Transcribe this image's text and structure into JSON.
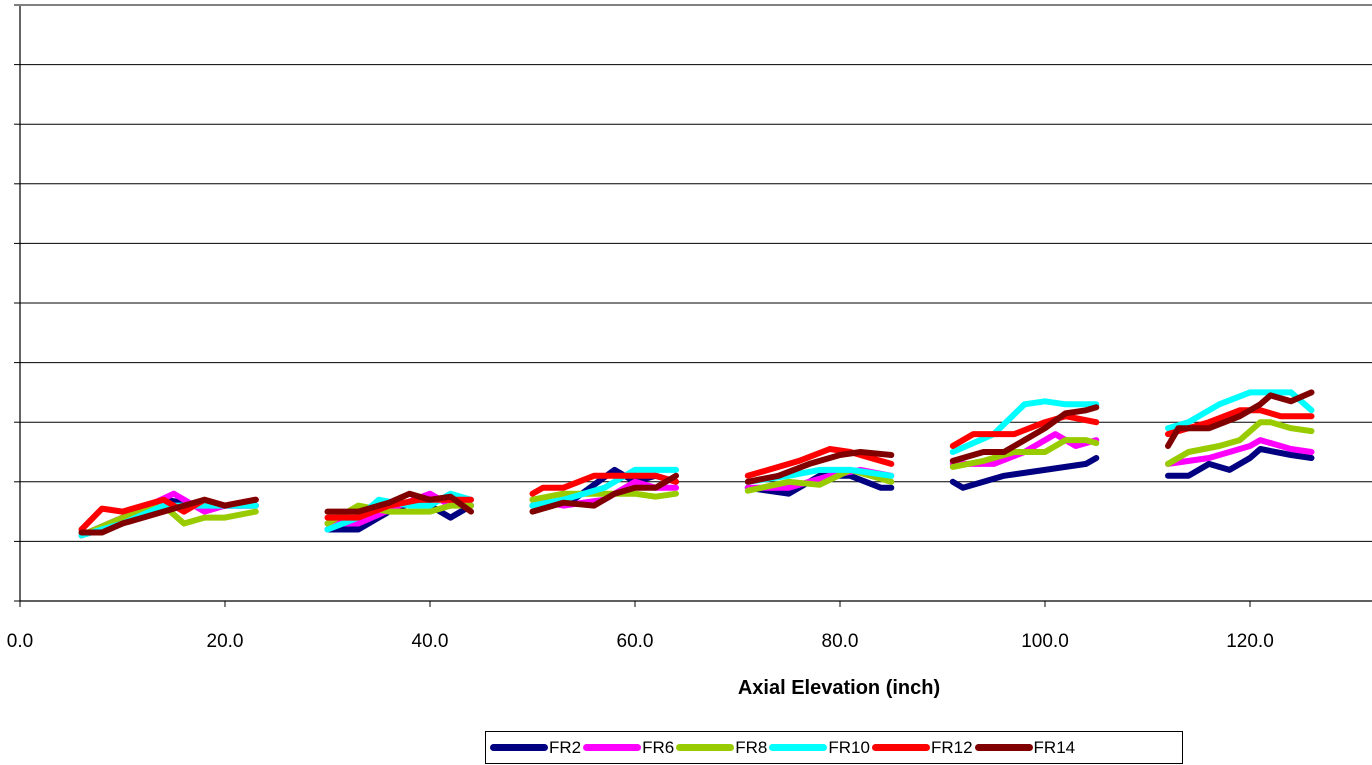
{
  "chart_data": {
    "type": "line",
    "xlabel": "Axial Elevation (inch)",
    "ylabel": "",
    "xlim": [
      0,
      132
    ],
    "ylim": [
      0,
      10
    ],
    "x_ticks": [
      0,
      20,
      40,
      60,
      80,
      100,
      120
    ],
    "x_tick_labels": [
      "0.0",
      "20.0",
      "40.0",
      "60.0",
      "80.0",
      "100.0",
      "120.0"
    ],
    "y_gridlines": [
      1,
      2,
      3,
      4,
      5,
      6,
      7,
      8,
      9,
      10
    ],
    "grid": "horizontal",
    "legend_position": "bottom",
    "series": [
      {
        "name": "FR2",
        "color": "#000080",
        "segments": [
          {
            "x": [
              6,
              10,
              14,
              18,
              20,
              23
            ],
            "y": [
              1.1,
              1.4,
              1.7,
              1.6,
              1.6,
              1.6
            ]
          },
          {
            "x": [
              30,
              33,
              36,
              39,
              42,
              44
            ],
            "y": [
              1.2,
              1.2,
              1.5,
              1.7,
              1.4,
              1.6
            ]
          },
          {
            "x": [
              50,
              54,
              58,
              60,
              62,
              64
            ],
            "y": [
              1.6,
              1.7,
              2.2,
              2.0,
              2.1,
              2.0
            ]
          },
          {
            "x": [
              71,
              75,
              78,
              81,
              84,
              85
            ],
            "y": [
              1.9,
              1.8,
              2.1,
              2.1,
              1.9,
              1.9
            ]
          },
          {
            "x": [
              91,
              92,
              96,
              100,
              104,
              105
            ],
            "y": [
              2.0,
              1.9,
              2.1,
              2.2,
              2.3,
              2.4
            ]
          },
          {
            "x": [
              112,
              114,
              116,
              118,
              120,
              121,
              124,
              126
            ],
            "y": [
              2.1,
              2.1,
              2.3,
              2.2,
              2.4,
              2.55,
              2.45,
              2.4
            ]
          }
        ]
      },
      {
        "name": "FR6",
        "color": "#ff00ff",
        "segments": [
          {
            "x": [
              6,
              10,
              15,
              18,
              20,
              23
            ],
            "y": [
              1.1,
              1.4,
              1.8,
              1.5,
              1.6,
              1.6
            ]
          },
          {
            "x": [
              30,
              33,
              37,
              40,
              42,
              44
            ],
            "y": [
              1.3,
              1.3,
              1.6,
              1.8,
              1.6,
              1.7
            ]
          },
          {
            "x": [
              50,
              53,
              57,
              60,
              62,
              64
            ],
            "y": [
              1.7,
              1.6,
              1.7,
              2.0,
              1.9,
              1.9
            ]
          },
          {
            "x": [
              71,
              75,
              79,
              82,
              85
            ],
            "y": [
              1.9,
              1.9,
              2.1,
              2.2,
              2.1
            ]
          },
          {
            "x": [
              91,
              95,
              98,
              101,
              103,
              105
            ],
            "y": [
              2.3,
              2.3,
              2.5,
              2.8,
              2.6,
              2.7
            ]
          },
          {
            "x": [
              112,
              116,
              120,
              121,
              124,
              126
            ],
            "y": [
              2.3,
              2.4,
              2.6,
              2.7,
              2.55,
              2.5
            ]
          }
        ]
      },
      {
        "name": "FR8",
        "color": "#99cc00",
        "segments": [
          {
            "x": [
              6,
              10,
              14,
              16,
              18,
              20,
              23
            ],
            "y": [
              1.1,
              1.4,
              1.6,
              1.3,
              1.4,
              1.4,
              1.5
            ]
          },
          {
            "x": [
              30,
              33,
              36,
              40,
              42,
              44
            ],
            "y": [
              1.3,
              1.6,
              1.5,
              1.5,
              1.6,
              1.6
            ]
          },
          {
            "x": [
              50,
              53,
              57,
              60,
              62,
              64
            ],
            "y": [
              1.7,
              1.8,
              1.8,
              1.8,
              1.75,
              1.8
            ]
          },
          {
            "x": [
              71,
              75,
              78,
              81,
              85
            ],
            "y": [
              1.85,
              2.0,
              1.95,
              2.2,
              2.0
            ]
          },
          {
            "x": [
              91,
              94,
              97,
              100,
              102,
              104,
              105
            ],
            "y": [
              2.25,
              2.35,
              2.5,
              2.5,
              2.7,
              2.7,
              2.65
            ]
          },
          {
            "x": [
              112,
              114,
              117,
              119,
              121,
              122,
              124,
              126
            ],
            "y": [
              2.3,
              2.5,
              2.6,
              2.7,
              3.0,
              3.0,
              2.9,
              2.85
            ]
          }
        ]
      },
      {
        "name": "FR10",
        "color": "#00ffff",
        "segments": [
          {
            "x": [
              6,
              10,
              14,
              18,
              20,
              23
            ],
            "y": [
              1.1,
              1.3,
              1.6,
              1.6,
              1.6,
              1.6
            ]
          },
          {
            "x": [
              30,
              33,
              35,
              38,
              40,
              42,
              44
            ],
            "y": [
              1.2,
              1.4,
              1.7,
              1.6,
              1.6,
              1.8,
              1.7
            ]
          },
          {
            "x": [
              50,
              53,
              57,
              60,
              62,
              64
            ],
            "y": [
              1.6,
              1.7,
              1.9,
              2.2,
              2.2,
              2.2
            ]
          },
          {
            "x": [
              71,
              75,
              78,
              81,
              85
            ],
            "y": [
              2.0,
              2.1,
              2.2,
              2.2,
              2.1
            ]
          },
          {
            "x": [
              91,
              95,
              98,
              100,
              102,
              105
            ],
            "y": [
              2.5,
              2.8,
              3.3,
              3.35,
              3.3,
              3.3
            ]
          },
          {
            "x": [
              112,
              114,
              117,
              120,
              121,
              124,
              126
            ],
            "y": [
              2.9,
              3.0,
              3.3,
              3.5,
              3.5,
              3.5,
              3.2
            ]
          }
        ]
      },
      {
        "name": "FR12",
        "color": "#ff0000",
        "segments": [
          {
            "x": [
              6,
              8,
              10,
              12,
              14,
              16,
              18,
              20,
              23
            ],
            "y": [
              1.2,
              1.55,
              1.5,
              1.6,
              1.7,
              1.5,
              1.7,
              1.6,
              1.7
            ]
          },
          {
            "x": [
              30,
              33,
              36,
              39,
              42,
              44
            ],
            "y": [
              1.4,
              1.4,
              1.6,
              1.7,
              1.7,
              1.7
            ]
          },
          {
            "x": [
              50,
              51,
              53,
              56,
              58,
              60,
              62,
              64
            ],
            "y": [
              1.8,
              1.9,
              1.9,
              2.1,
              2.1,
              2.1,
              2.1,
              2.0
            ]
          },
          {
            "x": [
              71,
              73,
              76,
              79,
              81,
              83,
              85
            ],
            "y": [
              2.1,
              2.2,
              2.35,
              2.55,
              2.5,
              2.4,
              2.3
            ]
          },
          {
            "x": [
              91,
              93,
              97,
              100,
              102,
              105
            ],
            "y": [
              2.6,
              2.8,
              2.8,
              3.0,
              3.1,
              3.0
            ]
          },
          {
            "x": [
              112,
              113,
              116,
              119,
              121,
              123,
              126
            ],
            "y": [
              2.8,
              2.85,
              3.0,
              3.2,
              3.2,
              3.1,
              3.1
            ]
          }
        ]
      },
      {
        "name": "FR14",
        "color": "#800000",
        "segments": [
          {
            "x": [
              6,
              8,
              10,
              12,
              14,
              16,
              18,
              20,
              23
            ],
            "y": [
              1.15,
              1.15,
              1.3,
              1.4,
              1.5,
              1.6,
              1.7,
              1.6,
              1.7
            ]
          },
          {
            "x": [
              30,
              33,
              36,
              38,
              40,
              42,
              44
            ],
            "y": [
              1.5,
              1.5,
              1.65,
              1.8,
              1.7,
              1.75,
              1.5
            ]
          },
          {
            "x": [
              50,
              53,
              56,
              58,
              60,
              62,
              64
            ],
            "y": [
              1.5,
              1.65,
              1.6,
              1.8,
              1.9,
              1.9,
              2.1
            ]
          },
          {
            "x": [
              71,
              74,
              77,
              80,
              82,
              85
            ],
            "y": [
              2.0,
              2.1,
              2.3,
              2.45,
              2.5,
              2.45
            ]
          },
          {
            "x": [
              91,
              94,
              96,
              98,
              100,
              102,
              104,
              105
            ],
            "y": [
              2.35,
              2.5,
              2.5,
              2.7,
              2.9,
              3.15,
              3.2,
              3.25
            ]
          },
          {
            "x": [
              112,
              113,
              116,
              119,
              121,
              122,
              124,
              126
            ],
            "y": [
              2.6,
              2.9,
              2.9,
              3.1,
              3.3,
              3.45,
              3.35,
              3.5
            ]
          }
        ]
      }
    ]
  }
}
